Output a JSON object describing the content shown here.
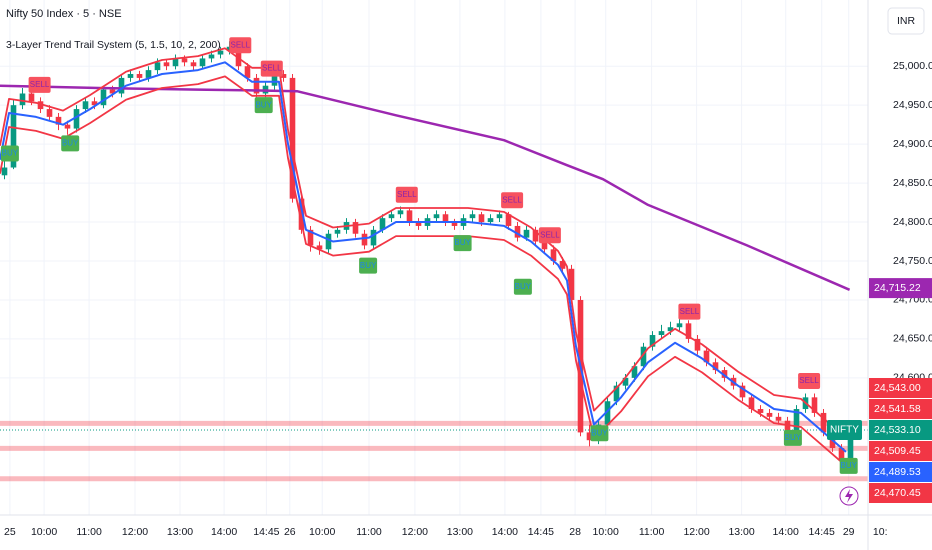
{
  "chart_data": {
    "type": "candlestick",
    "title": "Nifty 50 Index · 5 · NSE",
    "subtitle": "3-Layer Trend Trail System (5, 1.5, 10, 2, 200)",
    "currency": "INR",
    "grid": true,
    "up_color": "#089981",
    "down_color": "#f23645",
    "ylim": [
      24424,
      25085
    ],
    "yticks": [
      {
        "value": 25000,
        "label": "25,000.00"
      },
      {
        "value": 24950,
        "label": "24,950.00"
      },
      {
        "value": 24900,
        "label": "24,900.00"
      },
      {
        "value": 24850,
        "label": "24,850.00"
      },
      {
        "value": 24800,
        "label": "24,800.00"
      },
      {
        "value": 24750,
        "label": "24,750.00"
      },
      {
        "value": 24700,
        "label": "24,700.00"
      },
      {
        "value": 24650,
        "label": "24,650.00"
      },
      {
        "value": 24600,
        "label": "24,600.00"
      }
    ],
    "xlim": [
      0,
      98
    ],
    "xticks": [
      {
        "value": 1.1,
        "label": "25"
      },
      {
        "value": 4.9,
        "label": "10:00"
      },
      {
        "value": 9.9,
        "label": "11:00"
      },
      {
        "value": 15,
        "label": "12:00"
      },
      {
        "value": 20,
        "label": "13:00"
      },
      {
        "value": 24.9,
        "label": "14:00"
      },
      {
        "value": 29.6,
        "label": "14:45"
      },
      {
        "value": 32.2,
        "label": "26"
      },
      {
        "value": 35.8,
        "label": "10:00"
      },
      {
        "value": 41,
        "label": "11:00"
      },
      {
        "value": 46.1,
        "label": "12:00"
      },
      {
        "value": 51.1,
        "label": "13:00"
      },
      {
        "value": 56.1,
        "label": "14:00"
      },
      {
        "value": 60.1,
        "label": "14:45"
      },
      {
        "value": 63.9,
        "label": "28"
      },
      {
        "value": 67.3,
        "label": "10:00"
      },
      {
        "value": 72.4,
        "label": "11:00"
      },
      {
        "value": 77.4,
        "label": "12:00"
      },
      {
        "value": 82.4,
        "label": "13:00"
      },
      {
        "value": 87.3,
        "label": "14:00"
      },
      {
        "value": 91.3,
        "label": "14:45"
      },
      {
        "value": 94.3,
        "label": "29"
      },
      {
        "value": 97.8,
        "label": "10:"
      }
    ],
    "ohlc": [
      [
        24860,
        24878,
        24855,
        24870
      ],
      [
        24870,
        24958,
        24868,
        24950
      ],
      [
        24950,
        24972,
        24945,
        24965
      ],
      [
        24965,
        24968,
        24950,
        24955
      ],
      [
        24955,
        24960,
        24940,
        24945
      ],
      [
        24945,
        24950,
        24930,
        24935
      ],
      [
        24935,
        24940,
        24918,
        24925
      ],
      [
        24925,
        24930,
        24912,
        24920
      ],
      [
        24920,
        24950,
        24915,
        24945
      ],
      [
        24945,
        24960,
        24940,
        24955
      ],
      [
        24955,
        24960,
        24945,
        24950
      ],
      [
        24950,
        24975,
        24946,
        24970
      ],
      [
        24970,
        24975,
        24960,
        24965
      ],
      [
        24965,
        24990,
        24960,
        24985
      ],
      [
        24985,
        24996,
        24980,
        24990
      ],
      [
        24990,
        24994,
        24980,
        24985
      ],
      [
        24985,
        25000,
        24980,
        24995
      ],
      [
        24995,
        25010,
        24990,
        25005
      ],
      [
        25005,
        25009,
        24995,
        25000
      ],
      [
        25000,
        25015,
        24996,
        25010
      ],
      [
        25010,
        25014,
        25000,
        25005
      ],
      [
        25005,
        25008,
        24995,
        25000
      ],
      [
        25000,
        25015,
        24996,
        25010
      ],
      [
        25010,
        25020,
        25005,
        25015
      ],
      [
        25015,
        25025,
        25010,
        25020
      ],
      [
        25020,
        25032,
        25015,
        25025
      ],
      [
        25025,
        25028,
        24995,
        25000
      ],
      [
        25000,
        25004,
        24980,
        24985
      ],
      [
        24985,
        24990,
        24958,
        24965
      ],
      [
        24965,
        24980,
        24960,
        24975
      ],
      [
        24975,
        24995,
        24970,
        24990
      ],
      [
        24990,
        24995,
        24980,
        24985
      ],
      [
        24985,
        24990,
        24825,
        24830
      ],
      [
        24830,
        24835,
        24785,
        24790
      ],
      [
        24790,
        24795,
        24762,
        24770
      ],
      [
        24770,
        24775,
        24758,
        24765
      ],
      [
        24765,
        24790,
        24760,
        24785
      ],
      [
        24785,
        24795,
        24780,
        24790
      ],
      [
        24790,
        24805,
        24785,
        24800
      ],
      [
        24800,
        24804,
        24780,
        24785
      ],
      [
        24785,
        24790,
        24765,
        24770
      ],
      [
        24770,
        24795,
        24766,
        24790
      ],
      [
        24790,
        24810,
        24786,
        24805
      ],
      [
        24805,
        24815,
        24800,
        24810
      ],
      [
        24810,
        24820,
        24805,
        24815
      ],
      [
        24815,
        24818,
        24795,
        24800
      ],
      [
        24800,
        24805,
        24790,
        24795
      ],
      [
        24795,
        24810,
        24790,
        24805
      ],
      [
        24805,
        24815,
        24800,
        24810
      ],
      [
        24810,
        24814,
        24795,
        24800
      ],
      [
        24800,
        24804,
        24790,
        24795
      ],
      [
        24795,
        24810,
        24790,
        24805
      ],
      [
        24805,
        24815,
        24800,
        24810
      ],
      [
        24810,
        24813,
        24795,
        24800
      ],
      [
        24800,
        24810,
        24796,
        24805
      ],
      [
        24805,
        24815,
        24800,
        24810
      ],
      [
        24810,
        24813,
        24790,
        24795
      ],
      [
        24795,
        24800,
        24775,
        24780
      ],
      [
        24780,
        24795,
        24776,
        24790
      ],
      [
        24790,
        24794,
        24770,
        24775
      ],
      [
        24775,
        24780,
        24760,
        24765
      ],
      [
        24765,
        24770,
        24745,
        24750
      ],
      [
        24750,
        24755,
        24735,
        24740
      ],
      [
        24740,
        24745,
        24695,
        24700
      ],
      [
        24700,
        24705,
        24525,
        24530
      ],
      [
        24530,
        24540,
        24512,
        24520
      ],
      [
        24520,
        24545,
        24515,
        24540
      ],
      [
        24540,
        24575,
        24535,
        24570
      ],
      [
        24570,
        24595,
        24565,
        24590
      ],
      [
        24590,
        24605,
        24585,
        24600
      ],
      [
        24600,
        24620,
        24595,
        24615
      ],
      [
        24615,
        24645,
        24610,
        24640
      ],
      [
        24640,
        24660,
        24635,
        24655
      ],
      [
        24655,
        24668,
        24650,
        24660
      ],
      [
        24660,
        24672,
        24655,
        24665
      ],
      [
        24665,
        24680,
        24660,
        24670
      ],
      [
        24670,
        24674,
        24645,
        24650
      ],
      [
        24650,
        24655,
        24630,
        24635
      ],
      [
        24635,
        24640,
        24615,
        24620
      ],
      [
        24620,
        24625,
        24605,
        24610
      ],
      [
        24610,
        24614,
        24595,
        24600
      ],
      [
        24600,
        24604,
        24585,
        24590
      ],
      [
        24590,
        24594,
        24570,
        24575
      ],
      [
        24575,
        24580,
        24555,
        24560
      ],
      [
        24560,
        24565,
        24550,
        24555
      ],
      [
        24555,
        24560,
        24545,
        24550
      ],
      [
        24550,
        24555,
        24540,
        24545
      ],
      [
        24545,
        24550,
        24525,
        24530
      ],
      [
        24530,
        24565,
        24526,
        24560
      ],
      [
        24560,
        24580,
        24555,
        24575
      ],
      [
        24575,
        24580,
        24550,
        24555
      ],
      [
        24555,
        24560,
        24525,
        24530
      ],
      [
        24530,
        24535,
        24505,
        24510
      ],
      [
        24510,
        24515,
        24488,
        24495
      ],
      [
        24495,
        24538,
        24490,
        24533
      ]
    ],
    "lines": [
      {
        "color": "#9c27b0",
        "width": 2.5,
        "x": [
          0,
          11,
          22,
          28,
          33,
          44,
          56,
          63,
          67,
          72,
          83,
          94.4
        ],
        "values": [
          24975,
          24972,
          24970,
          24969,
          24968,
          24937,
          24905,
          24873,
          24855,
          24822,
          24770,
          24713
        ]
      },
      {
        "color": "#f23645",
        "width": 1.8,
        "x": [
          0,
          1,
          4,
          7,
          10,
          14,
          18,
          22,
          25,
          28,
          31,
          32,
          34,
          37,
          41,
          44,
          48,
          52,
          56,
          59,
          62,
          63,
          64,
          66,
          69,
          72,
          75,
          78,
          82,
          86,
          89,
          92,
          94
        ],
        "values": [
          24898,
          24958,
          24953,
          24943,
          24963,
          24993,
          25008,
          25013,
          25023,
          24998,
          24998,
          24918,
          24808,
          24793,
          24798,
          24818,
          24818,
          24818,
          24813,
          24793,
          24763,
          24743,
          24658,
          24558,
          24593,
          24638,
          24663,
          24643,
          24608,
          24578,
          24573,
          24543,
          24523
        ]
      },
      {
        "color": "#f23645",
        "width": 1.8,
        "x": [
          0,
          1,
          4,
          7,
          10,
          14,
          18,
          22,
          25,
          28,
          31,
          32,
          34,
          37,
          41,
          44,
          48,
          52,
          56,
          59,
          62,
          63,
          64,
          66,
          69,
          72,
          75,
          78,
          82,
          86,
          89,
          92,
          94
        ],
        "values": [
          24862,
          24922,
          24917,
          24907,
          24927,
          24957,
          24972,
          24977,
          24987,
          24962,
          24962,
          24882,
          24772,
          24757,
          24762,
          24782,
          24782,
          24782,
          24777,
          24757,
          24727,
          24707,
          24622,
          24522,
          24557,
          24602,
          24627,
          24607,
          24572,
          24542,
          24537,
          24507,
          24487
        ]
      },
      {
        "color": "#2962ff",
        "width": 2,
        "x": [
          0,
          1,
          4,
          7,
          10,
          14,
          18,
          22,
          25,
          28,
          31,
          32,
          34,
          37,
          41,
          44,
          48,
          52,
          56,
          59,
          62,
          63,
          64,
          66,
          69,
          72,
          75,
          78,
          82,
          86,
          89,
          92,
          94
        ],
        "values": [
          24880,
          24940,
          24935,
          24925,
          24945,
          24975,
          24990,
          24995,
          25005,
          24980,
          24980,
          24900,
          24790,
          24775,
          24780,
          24800,
          24800,
          24800,
          24795,
          24775,
          24745,
          24725,
          24640,
          24540,
          24575,
          24620,
          24645,
          24625,
          24590,
          24560,
          24555,
          24525,
          24505
        ]
      }
    ],
    "signals": [
      {
        "label": "SELL",
        "x": 4.4,
        "y": 24976
      },
      {
        "label": "SELL",
        "x": 26.7,
        "y": 25027
      },
      {
        "label": "SELL",
        "x": 30.2,
        "y": 24997
      },
      {
        "label": "SELL",
        "x": 45.2,
        "y": 24835
      },
      {
        "label": "SELL",
        "x": 56.9,
        "y": 24828
      },
      {
        "label": "SELL",
        "x": 61.1,
        "y": 24783
      },
      {
        "label": "SELL",
        "x": 76.6,
        "y": 24685
      },
      {
        "label": "SELL",
        "x": 89.9,
        "y": 24596
      },
      {
        "label": "BUY",
        "x": 1.1,
        "y": 24888
      },
      {
        "label": "BUY",
        "x": 7.8,
        "y": 24901
      },
      {
        "label": "BUY",
        "x": 29.3,
        "y": 24950
      },
      {
        "label": "BUY",
        "x": 40.9,
        "y": 24744
      },
      {
        "label": "BUY",
        "x": 51.4,
        "y": 24773
      },
      {
        "label": "BUY",
        "x": 58.1,
        "y": 24717
      },
      {
        "label": "BUY",
        "x": 66.6,
        "y": 24529
      },
      {
        "label": "BUY",
        "x": 88.1,
        "y": 24523
      },
      {
        "label": "BUY",
        "x": 94.3,
        "y": 24487
      }
    ],
    "price_labels": [
      {
        "value": 24715.22,
        "label": "24,715.22",
        "color": "#9c27b0"
      },
      {
        "value": 24543,
        "label": "24,543.00",
        "color": "#f23645"
      },
      {
        "value": 24541.58,
        "label": "24,541.58",
        "color": "#f23645",
        "line_style": "band"
      },
      {
        "value": 24533.1,
        "label": "24,533.10",
        "color": "#089981",
        "tag": "NIFTY",
        "line_style": "dotted"
      },
      {
        "value": 24509.45,
        "label": "24,509.45",
        "color": "#f23645",
        "line_style": "band"
      },
      {
        "value": 24489.53,
        "label": "24,489.53",
        "color": "#2962ff"
      },
      {
        "value": 24470.45,
        "label": "24,470.45",
        "color": "#f23645",
        "line_style": "band"
      }
    ]
  }
}
